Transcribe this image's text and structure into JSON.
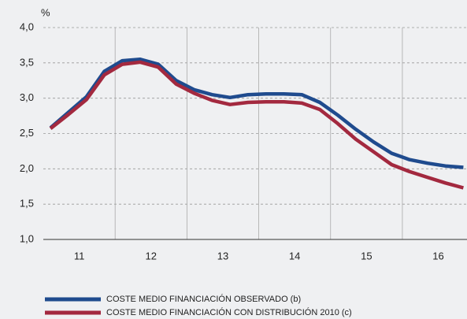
{
  "chart_data": {
    "type": "line",
    "y_label": "%",
    "x": [
      2011.1,
      2011.35,
      2011.6,
      2011.85,
      2012.1,
      2012.35,
      2012.6,
      2012.85,
      2013.1,
      2013.35,
      2013.6,
      2013.85,
      2014.1,
      2014.35,
      2014.6,
      2014.85,
      2015.1,
      2015.35,
      2015.6,
      2015.85,
      2016.1,
      2016.35,
      2016.6,
      2016.85
    ],
    "series": [
      {
        "name": "COSTE MEDIO FINANCIACIÓN OBSERVADO (b)",
        "color": "#1f4b8e",
        "values": [
          2.58,
          2.8,
          3.02,
          3.38,
          3.53,
          3.55,
          3.48,
          3.25,
          3.12,
          3.05,
          3.01,
          3.05,
          3.06,
          3.06,
          3.05,
          2.94,
          2.76,
          2.56,
          2.38,
          2.22,
          2.13,
          2.08,
          2.04,
          2.02
        ]
      },
      {
        "name": "COSTE MEDIO FINANCIACIÓN CON DISTRIBUCIÓN 2010 (c)",
        "color": "#a3293f",
        "values": [
          2.57,
          2.77,
          2.98,
          3.33,
          3.48,
          3.51,
          3.44,
          3.2,
          3.07,
          2.97,
          2.91,
          2.94,
          2.95,
          2.95,
          2.93,
          2.84,
          2.64,
          2.42,
          2.24,
          2.06,
          1.96,
          1.88,
          1.8,
          1.73
        ]
      }
    ],
    "xlim": [
      2011,
      2016.9
    ],
    "xticks": [
      {
        "value": 2011.5,
        "label": "11"
      },
      {
        "value": 2012.5,
        "label": "12"
      },
      {
        "value": 2013.5,
        "label": "13"
      },
      {
        "value": 2014.5,
        "label": "14"
      },
      {
        "value": 2015.5,
        "label": "15"
      },
      {
        "value": 2016.5,
        "label": "16"
      }
    ],
    "ylim": [
      1,
      4
    ],
    "yticks": [
      {
        "value": 1,
        "label": "1,0"
      },
      {
        "value": 1.5,
        "label": "1,5"
      },
      {
        "value": 2,
        "label": "2,0"
      },
      {
        "value": 2.5,
        "label": "2,5"
      },
      {
        "value": 3,
        "label": "3,0"
      },
      {
        "value": 3.5,
        "label": "3,5"
      },
      {
        "value": 4,
        "label": "4,0"
      }
    ],
    "grid": true,
    "legend": "bottom"
  }
}
